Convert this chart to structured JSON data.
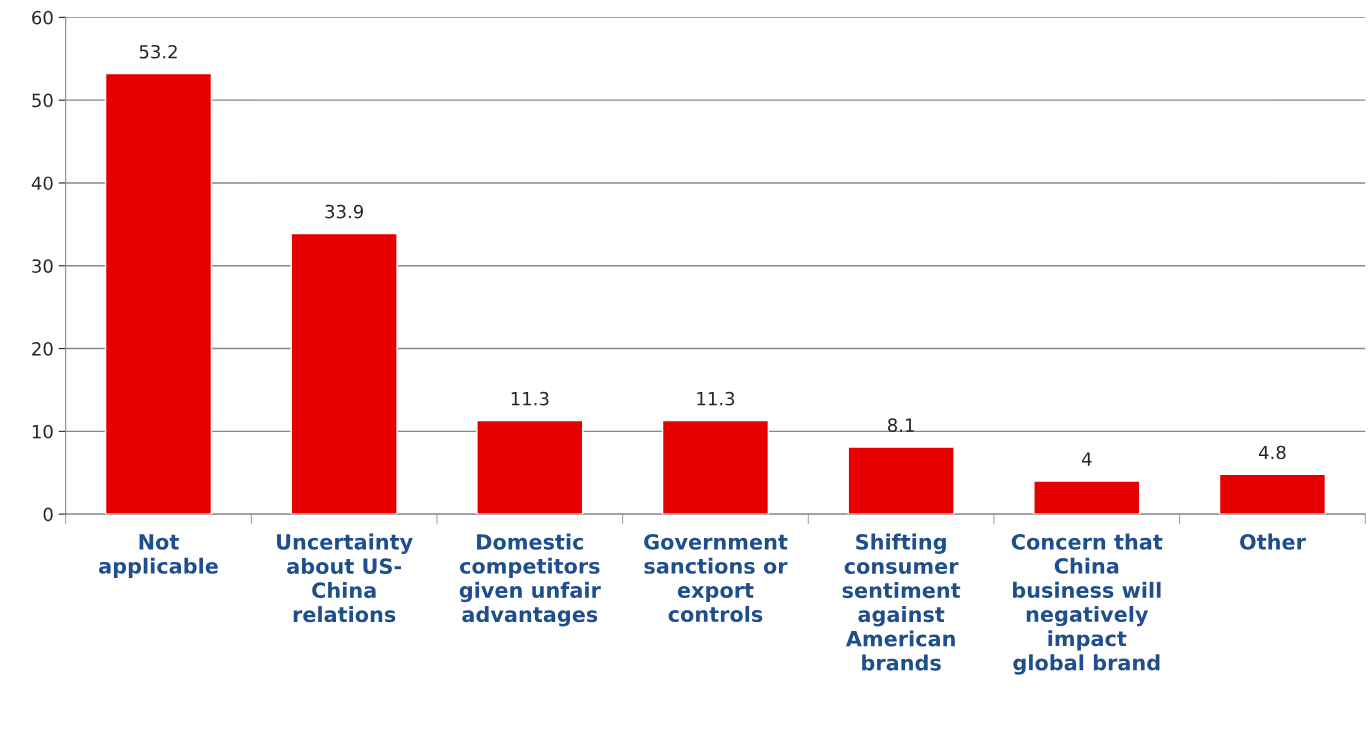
{
  "chart_data": {
    "type": "bar",
    "categories": [
      "Not\napplicable",
      "Uncertainty\nabout US-\nChina\nrelations",
      "Domestic\ncompetitors\ngiven unfair\nadvantages",
      "Government\nsanctions or\nexport\ncontrols",
      "Shifting\nconsumer\nsentiment\nagainst\nAmerican\nbrands",
      "Concern that\nChina\nbusiness will\nnegatively\nimpact\nglobal brand",
      "Other"
    ],
    "values": [
      53.2,
      33.9,
      11.3,
      11.3,
      8.1,
      4,
      4.8
    ],
    "color": "#e60000",
    "ylim": [
      0,
      60
    ],
    "yticks": [
      0,
      10,
      20,
      30,
      40,
      50,
      60
    ],
    "grid": "y",
    "data_labels": true,
    "legend": false
  }
}
